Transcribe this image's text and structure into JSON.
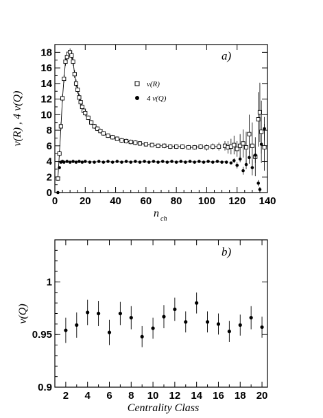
{
  "chart_data": [
    {
      "type": "scatter",
      "panel_label": "a)",
      "xlabel": "n",
      "xlabel_sub": "ch",
      "ylabel": "ν(R) ,  4 ν(Q)",
      "xlim": [
        0,
        140
      ],
      "ylim": [
        0,
        19
      ],
      "x_ticks": [
        0,
        20,
        40,
        60,
        80,
        100,
        120,
        140
      ],
      "y_ticks": [
        0,
        2,
        4,
        6,
        8,
        10,
        12,
        14,
        16,
        18
      ],
      "legend_position": "upper-middle",
      "series": [
        {
          "name": "ν(R)",
          "marker": "open-square",
          "x": [
            2,
            3,
            4,
            5,
            6,
            7,
            8,
            9,
            10,
            11,
            12,
            13,
            14,
            15,
            16,
            17,
            18,
            19,
            20,
            22,
            24,
            26,
            28,
            30,
            32,
            35,
            38,
            41,
            44,
            47,
            50,
            53,
            56,
            60,
            64,
            68,
            72,
            76,
            80,
            84,
            88,
            92,
            96,
            100,
            104,
            108,
            112,
            114,
            116,
            118,
            120,
            122,
            124,
            126,
            128,
            130,
            132,
            134,
            135,
            136,
            138
          ],
          "y": [
            1.8,
            5.0,
            8.5,
            12.1,
            14.6,
            16.8,
            17.4,
            17.8,
            18.0,
            17.6,
            16.8,
            15.2,
            14.0,
            13.2,
            12.2,
            11.6,
            11.0,
            10.5,
            10.2,
            9.6,
            9.0,
            8.5,
            8.2,
            7.9,
            7.6,
            7.3,
            7.1,
            6.9,
            6.7,
            6.6,
            6.5,
            6.4,
            6.3,
            6.2,
            6.1,
            6.0,
            6.0,
            5.9,
            5.9,
            5.9,
            5.8,
            5.8,
            5.9,
            5.8,
            5.9,
            5.9,
            6.0,
            5.8,
            5.9,
            6.1,
            5.6,
            6.0,
            6.3,
            5.8,
            7.5,
            6.0,
            4.6,
            9.4,
            10.3,
            7.8,
            5.8
          ],
          "err": [
            0.3,
            0.4,
            0.5,
            0.5,
            0.5,
            0.5,
            0.5,
            0.5,
            0.5,
            0.5,
            0.5,
            0.5,
            0.5,
            0.5,
            0.5,
            0.4,
            0.4,
            0.4,
            0.4,
            0.3,
            0.3,
            0.3,
            0.3,
            0.3,
            0.3,
            0.3,
            0.3,
            0.3,
            0.3,
            0.3,
            0.3,
            0.3,
            0.3,
            0.3,
            0.3,
            0.3,
            0.3,
            0.3,
            0.3,
            0.3,
            0.3,
            0.3,
            0.3,
            0.4,
            0.4,
            0.5,
            0.6,
            0.8,
            1.0,
            1.2,
            1.0,
            1.5,
            1.8,
            2.0,
            2.5,
            3.0,
            2.5,
            3.5,
            3.8,
            4.0,
            3.0
          ]
        },
        {
          "name": "4 ν(Q)",
          "marker": "filled-circle",
          "x": [
            2,
            3,
            4,
            5,
            6,
            8,
            10,
            12,
            14,
            16,
            18,
            20,
            23,
            26,
            29,
            32,
            35,
            38,
            41,
            44,
            47,
            50,
            53,
            56,
            59,
            62,
            65,
            68,
            71,
            74,
            77,
            80,
            83,
            86,
            89,
            92,
            95,
            98,
            101,
            104,
            107,
            110,
            113,
            116,
            118,
            120,
            122,
            124,
            126,
            128,
            130,
            132,
            134,
            135,
            136,
            138
          ],
          "y": [
            0.0,
            3.2,
            3.9,
            4.0,
            3.9,
            4.0,
            3.9,
            4.0,
            3.9,
            4.0,
            3.9,
            4.0,
            3.9,
            3.9,
            4.0,
            3.9,
            4.0,
            3.9,
            4.0,
            3.9,
            4.0,
            3.9,
            4.0,
            3.9,
            4.0,
            3.9,
            4.0,
            3.9,
            4.0,
            3.9,
            4.0,
            3.9,
            4.0,
            3.9,
            4.0,
            3.9,
            4.0,
            3.9,
            4.0,
            3.9,
            4.0,
            3.9,
            3.9,
            3.8,
            4.1,
            3.5,
            4.3,
            2.8,
            3.6,
            4.5,
            3.2,
            4.8,
            1.2,
            0.4,
            6.2,
            8.2
          ],
          "err": [
            0.1,
            0.2,
            0.1,
            0.1,
            0.1,
            0.1,
            0.1,
            0.1,
            0.1,
            0.1,
            0.1,
            0.1,
            0.1,
            0.1,
            0.1,
            0.1,
            0.1,
            0.1,
            0.1,
            0.1,
            0.1,
            0.1,
            0.1,
            0.1,
            0.1,
            0.1,
            0.1,
            0.1,
            0.1,
            0.1,
            0.1,
            0.1,
            0.1,
            0.1,
            0.1,
            0.1,
            0.1,
            0.1,
            0.1,
            0.1,
            0.1,
            0.2,
            0.2,
            0.2,
            0.3,
            0.4,
            0.4,
            0.5,
            0.6,
            0.8,
            1.0,
            1.0,
            0.4,
            0.3,
            1.2,
            1.5
          ]
        }
      ]
    },
    {
      "type": "scatter",
      "panel_label": "b)",
      "xlabel": "Centrality Class",
      "ylabel": "ν(Q)",
      "xlim": [
        1,
        20.5
      ],
      "ylim": [
        0.9,
        1.04
      ],
      "x_ticks": [
        2,
        4,
        6,
        8,
        10,
        12,
        14,
        16,
        18,
        20
      ],
      "y_ticks": [
        0.9,
        0.95,
        1
      ],
      "y_tick_labels": [
        "0.9",
        "0.95",
        "1"
      ],
      "series": [
        {
          "marker": "filled-circle",
          "x": [
            2,
            3,
            4,
            5,
            6,
            7,
            8,
            9,
            10,
            11,
            12,
            13,
            14,
            15,
            16,
            17,
            18,
            19,
            20
          ],
          "y": [
            0.954,
            0.959,
            0.971,
            0.97,
            0.952,
            0.97,
            0.966,
            0.948,
            0.956,
            0.967,
            0.974,
            0.962,
            0.98,
            0.962,
            0.96,
            0.953,
            0.959,
            0.966,
            0.957
          ],
          "err": [
            0.012,
            0.012,
            0.012,
            0.012,
            0.012,
            0.011,
            0.011,
            0.01,
            0.01,
            0.011,
            0.011,
            0.01,
            0.01,
            0.01,
            0.01,
            0.01,
            0.01,
            0.011,
            0.01
          ]
        }
      ]
    }
  ]
}
